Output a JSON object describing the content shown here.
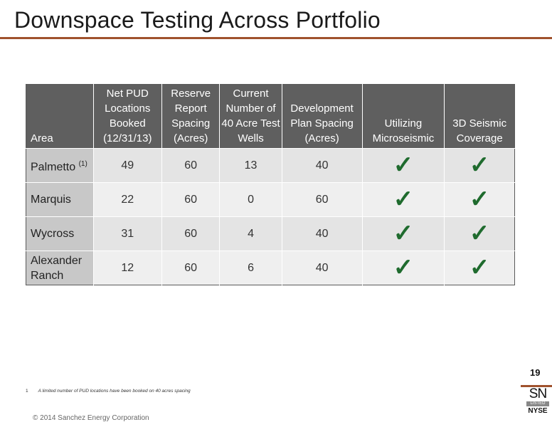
{
  "slide": {
    "title": "Downspace Testing Across Portfolio",
    "page_number": "19",
    "footnote_number": "1",
    "footnote_text": "A limited number of PUD locations have been booked on 40 acres spacing",
    "copyright": "© 2014 Sanchez Energy Corporation",
    "logo": {
      "ticker": "SN",
      "listed": "LISTED",
      "exchange": "NYSE"
    },
    "colors": {
      "accent_rule": "#a0522d",
      "header_bg": "#5f5f5f",
      "check": "#1f6b2e"
    }
  },
  "table": {
    "headers": [
      "Area",
      "Net PUD Locations Booked (12/31/13)",
      "Reserve Report Spacing (Acres)",
      "Current Number of 40 Acre Test Wells",
      "Development Plan Spacing (Acres)",
      "Utilizing Microseismic",
      "3D Seismic Coverage"
    ],
    "rows": [
      {
        "area": "Palmetto",
        "area_note": "(1)",
        "net_pud": "49",
        "reserve_spacing": "60",
        "test_wells": "13",
        "dev_spacing": "40",
        "microseismic": "✓",
        "seismic_3d": "✓"
      },
      {
        "area": "Marquis",
        "area_note": "",
        "net_pud": "22",
        "reserve_spacing": "60",
        "test_wells": "0",
        "dev_spacing": "60",
        "microseismic": "✓",
        "seismic_3d": "✓"
      },
      {
        "area": "Wycross",
        "area_note": "",
        "net_pud": "31",
        "reserve_spacing": "60",
        "test_wells": "4",
        "dev_spacing": "40",
        "microseismic": "✓",
        "seismic_3d": "✓"
      },
      {
        "area": "Alexander Ranch",
        "area_note": "",
        "net_pud": "12",
        "reserve_spacing": "60",
        "test_wells": "6",
        "dev_spacing": "40",
        "microseismic": "✓",
        "seismic_3d": "✓"
      }
    ]
  }
}
